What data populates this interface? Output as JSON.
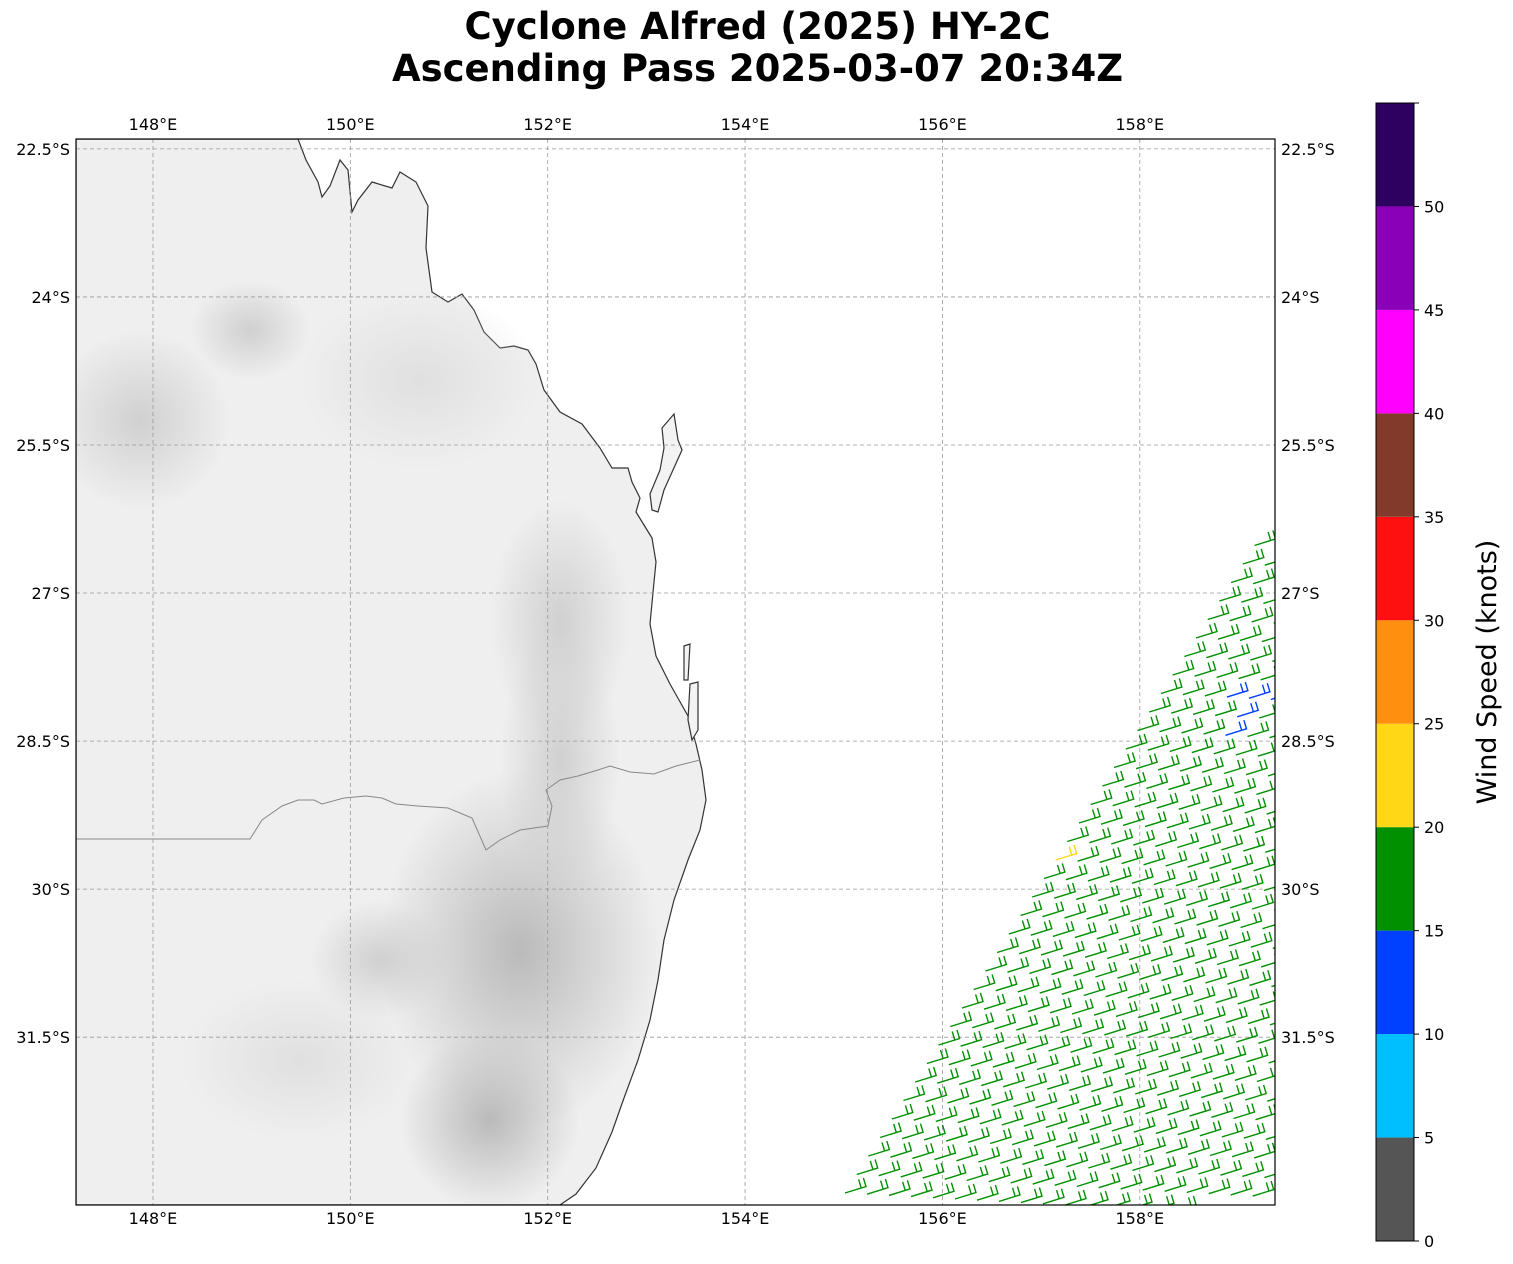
{
  "title": {
    "line1": "Cyclone Alfred (2025) HY-2C",
    "line2": "Ascending Pass 2025-03-07 20:34Z"
  },
  "map": {
    "lon_range": [
      147.22,
      159.37
    ],
    "lat_range": [
      -33.2,
      -22.4
    ],
    "lon_ticks": [
      {
        "value": 148,
        "label": "148°E"
      },
      {
        "value": 150,
        "label": "150°E"
      },
      {
        "value": 152,
        "label": "152°E"
      },
      {
        "value": 154,
        "label": "154°E"
      },
      {
        "value": 156,
        "label": "156°E"
      },
      {
        "value": 158,
        "label": "158°E"
      }
    ],
    "lat_ticks": [
      {
        "value": -22.5,
        "label": "22.5°S"
      },
      {
        "value": -24,
        "label": "24°S"
      },
      {
        "value": -25.5,
        "label": "25.5°S"
      },
      {
        "value": -27,
        "label": "27°S"
      },
      {
        "value": -28.5,
        "label": "28.5°S"
      },
      {
        "value": -30,
        "label": "30°S"
      },
      {
        "value": -31.5,
        "label": "31.5°S"
      }
    ],
    "gridlines": true,
    "background": "grayscale-terrain",
    "wind_barbs": "wind-barb-icon",
    "barb_swath": "southeast corner, east of ~155°E, south of ~26°S"
  },
  "colorbar": {
    "label": "Wind Speed (knots)",
    "ticks": [
      "0",
      "5",
      "10",
      "15",
      "20",
      "25",
      "30",
      "35",
      "40",
      "45",
      "50"
    ],
    "bins": [
      {
        "from": 0,
        "to": 5,
        "color": "#555555"
      },
      {
        "from": 5,
        "to": 10,
        "color": "#00bfff"
      },
      {
        "from": 10,
        "to": 15,
        "color": "#0040ff"
      },
      {
        "from": 15,
        "to": 20,
        "color": "#009000"
      },
      {
        "from": 20,
        "to": 25,
        "color": "#ffd717"
      },
      {
        "from": 25,
        "to": 30,
        "color": "#ff900f"
      },
      {
        "from": 30,
        "to": 35,
        "color": "#ff1010"
      },
      {
        "from": 35,
        "to": 40,
        "color": "#823b2a"
      },
      {
        "from": 40,
        "to": 45,
        "color": "#ff00ff"
      },
      {
        "from": 45,
        "to": 50,
        "color": "#8a00b8"
      },
      {
        "from": 50,
        "to": 55,
        "color": "#2e0060"
      }
    ]
  }
}
